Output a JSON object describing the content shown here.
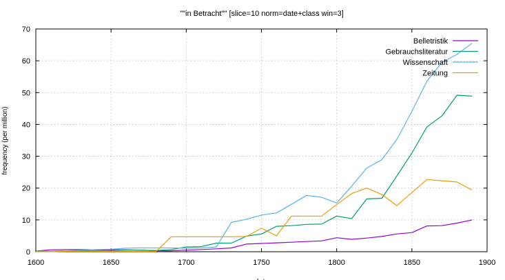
{
  "chart_data": {
    "type": "line",
    "title": "\"\"in Betracht\"\" [slice=10 norm=date+class win=3]",
    "xlabel": "date",
    "ylabel": "frequency (per million)",
    "xlim": [
      1600,
      1900
    ],
    "ylim": [
      0,
      70
    ],
    "xticks": [
      1600,
      1650,
      1700,
      1750,
      1800,
      1850,
      1900
    ],
    "yticks": [
      0,
      10,
      20,
      30,
      40,
      50,
      60,
      70
    ],
    "grid": true,
    "legend_position": "top-right",
    "series": [
      {
        "name": "Belletristik",
        "color": "#9400d3",
        "x": [
          1600,
          1610,
          1620,
          1630,
          1640,
          1650,
          1660,
          1670,
          1680,
          1690,
          1700,
          1710,
          1720,
          1730,
          1740,
          1750,
          1760,
          1770,
          1780,
          1790,
          1800,
          1810,
          1820,
          1830,
          1840,
          1850,
          1860,
          1870,
          1880,
          1890
        ],
        "y": [
          0.2,
          0.6,
          0.7,
          0.7,
          0.6,
          0.6,
          0.6,
          0.5,
          0.3,
          0.3,
          0.5,
          0.7,
          0.9,
          1.2,
          2.4,
          2.6,
          2.8,
          3.0,
          3.2,
          3.4,
          4.4,
          3.9,
          4.3,
          4.8,
          5.6,
          6.0,
          8.1,
          8.2,
          9.0,
          10.0
        ]
      },
      {
        "name": "Gebrauchsliteratur",
        "color": "#009e73",
        "x": [
          1600,
          1610,
          1620,
          1630,
          1640,
          1650,
          1660,
          1670,
          1680,
          1690,
          1700,
          1710,
          1720,
          1730,
          1740,
          1750,
          1760,
          1770,
          1780,
          1790,
          1800,
          1810,
          1820,
          1830,
          1840,
          1850,
          1860,
          1870,
          1880,
          1890
        ],
        "y": [
          0.1,
          0.2,
          0.3,
          0.3,
          0.4,
          0.4,
          0.5,
          0.5,
          0.4,
          0.7,
          1.5,
          1.6,
          2.7,
          2.7,
          4.9,
          5.6,
          8.0,
          8.2,
          8.6,
          8.7,
          11.2,
          10.4,
          16.6,
          16.8,
          23.8,
          31.0,
          39.2,
          42.7,
          49.2,
          48.9
        ]
      },
      {
        "name": "Wissenschaft",
        "color": "#56b4e9",
        "x": [
          1600,
          1610,
          1620,
          1630,
          1640,
          1650,
          1660,
          1670,
          1680,
          1690,
          1700,
          1710,
          1720,
          1730,
          1740,
          1750,
          1760,
          1770,
          1780,
          1790,
          1800,
          1810,
          1820,
          1830,
          1840,
          1850,
          1860,
          1870,
          1880,
          1890
        ],
        "y": [
          0.1,
          0.2,
          0.3,
          0.5,
          0.7,
          0.8,
          1.1,
          1.2,
          1.2,
          1.2,
          1.1,
          1.2,
          1.5,
          9.2,
          10.2,
          11.5,
          12.2,
          14.9,
          17.7,
          17.1,
          15.3,
          20.6,
          26.3,
          28.9,
          35.3,
          44.1,
          53.6,
          59.5,
          62.0,
          65.5
        ]
      },
      {
        "name": "Zeitung",
        "color": "#e69f00",
        "x": [
          1600,
          1610,
          1620,
          1630,
          1640,
          1650,
          1660,
          1670,
          1680,
          1690,
          1700,
          1710,
          1720,
          1730,
          1740,
          1750,
          1760,
          1770,
          1780,
          1790,
          1800,
          1810,
          1820,
          1830,
          1840,
          1850,
          1860,
          1870,
          1880,
          1890
        ],
        "y": [
          0.0,
          0.0,
          0.1,
          0.1,
          0.1,
          0.1,
          0.1,
          0.1,
          0.1,
          4.7,
          4.7,
          4.7,
          4.7,
          4.7,
          4.8,
          7.4,
          5.0,
          11.2,
          11.2,
          11.2,
          14.8,
          18.3,
          20.0,
          18.0,
          14.5,
          18.6,
          22.7,
          22.3,
          21.9,
          19.4
        ]
      }
    ]
  }
}
